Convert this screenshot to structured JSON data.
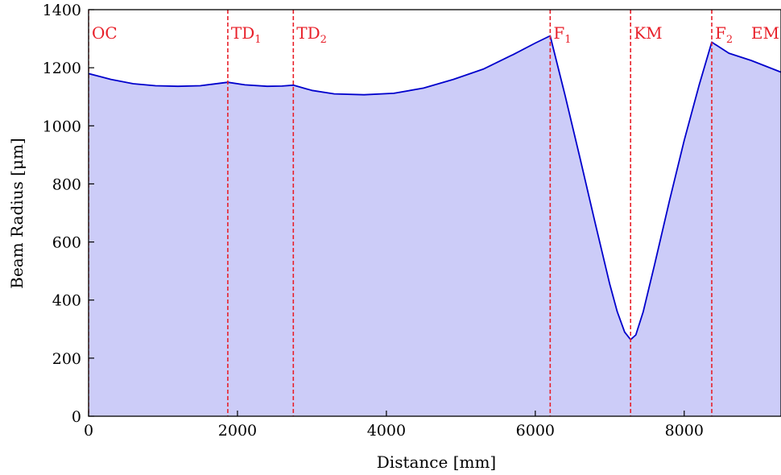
{
  "chart_data": {
    "type": "area",
    "xlabel": "Distance [mm]",
    "ylabel": "Beam Radius [μm]",
    "xlim": [
      0,
      9300
    ],
    "ylim": [
      0,
      1400
    ],
    "xticks": [
      0,
      2000,
      4000,
      6000,
      8000
    ],
    "yticks": [
      0,
      200,
      400,
      600,
      800,
      1000,
      1200,
      1400
    ],
    "grid": false,
    "colors": {
      "line": "#0000cc",
      "fill": "#ccccf8",
      "markers": "#e8202a"
    },
    "series": [
      {
        "x": [
          0,
          300,
          600,
          900,
          1200,
          1500,
          1870,
          2100,
          2400,
          2600,
          2750,
          3000,
          3300,
          3700,
          4100,
          4500,
          4900,
          5300,
          5700,
          6000,
          6200,
          6400,
          6600,
          6800,
          7000,
          7100,
          7200,
          7280,
          7350,
          7450,
          7600,
          7800,
          8000,
          8200,
          8370,
          8600,
          8900,
          9300
        ],
        "y": [
          1180,
          1160,
          1145,
          1138,
          1136,
          1138,
          1150,
          1141,
          1136,
          1137,
          1140,
          1122,
          1110,
          1107,
          1112,
          1130,
          1160,
          1195,
          1245,
          1285,
          1310,
          1105,
          890,
          670,
          455,
          360,
          290,
          264,
          280,
          360,
          520,
          740,
          950,
          1140,
          1288,
          1250,
          1225,
          1185
        ]
      }
    ],
    "markers": [
      {
        "x": 0,
        "label": "OC",
        "sub": ""
      },
      {
        "x": 1870,
        "label": "TD",
        "sub": "1"
      },
      {
        "x": 2750,
        "label": "TD",
        "sub": "2"
      },
      {
        "x": 6200,
        "label": "F",
        "sub": "1"
      },
      {
        "x": 7280,
        "label": "KM",
        "sub": ""
      },
      {
        "x": 8370,
        "label": "F",
        "sub": "2"
      },
      {
        "x": 9300,
        "label": "EM",
        "sub": ""
      }
    ]
  }
}
